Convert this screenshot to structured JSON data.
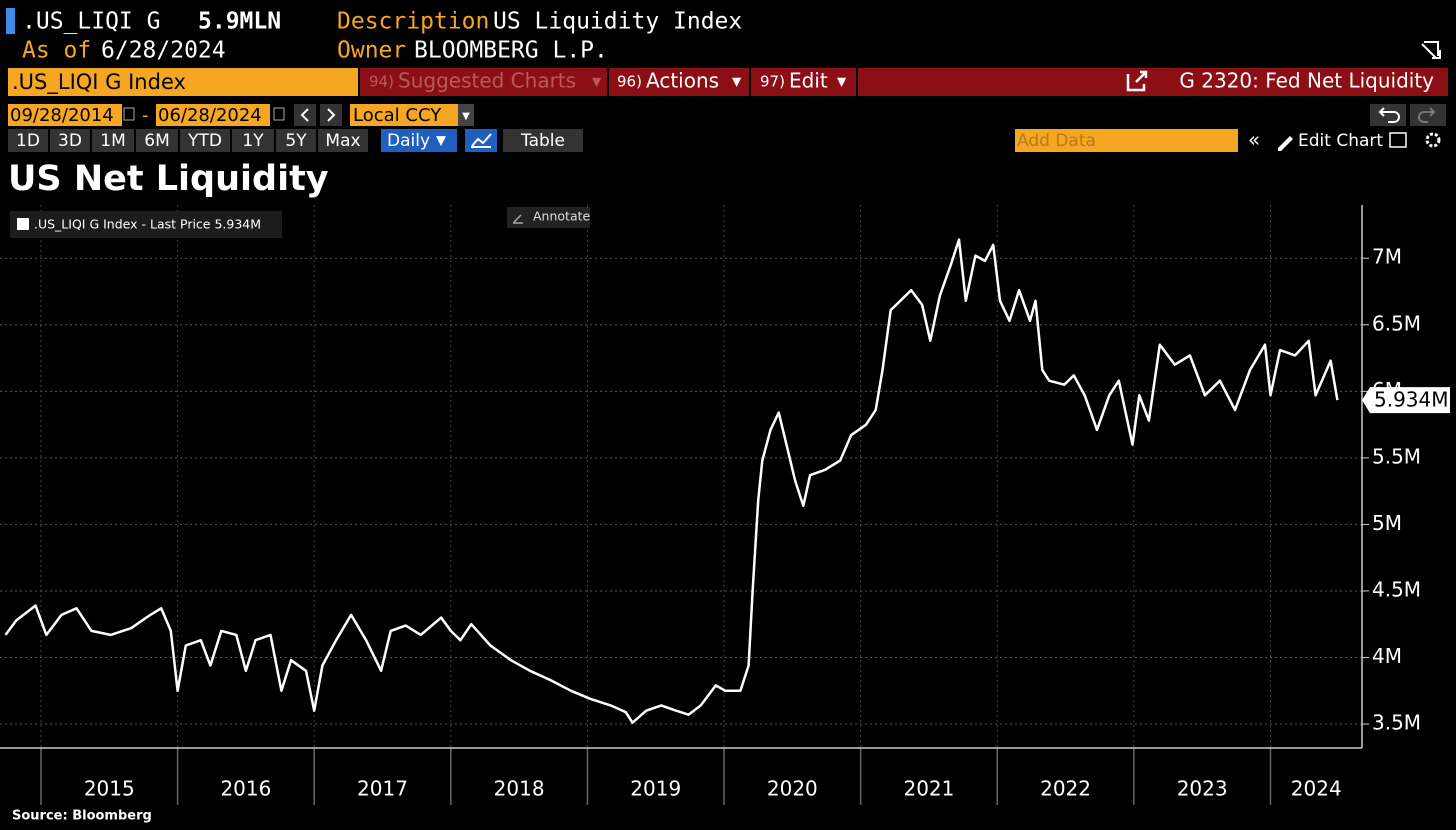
{
  "header": {
    "ticker": ".US_LIQI G",
    "value": "5.9MLN",
    "description_label": "Description",
    "description": "US Liquidity Index",
    "asof_label": "As of",
    "asof": "6/28/2024",
    "owner_label": "Owner",
    "owner": "BLOOMBERG L.P."
  },
  "toolbar": {
    "security": ".US_LIQI G Index",
    "menus": [
      {
        "key": "94)",
        "label": "Suggested Charts"
      },
      {
        "key": "96)",
        "label": "Actions"
      },
      {
        "key": "97)",
        "label": "Edit"
      }
    ],
    "link": "G 2320: Fed Net Liquidity"
  },
  "controls": {
    "start_date": "09/28/2014",
    "separator": "-",
    "end_date": "06/28/2024",
    "currency": "Local CCY",
    "ranges": [
      "1D",
      "3D",
      "1M",
      "6M",
      "YTD",
      "1Y",
      "5Y",
      "Max"
    ],
    "frequency": "Daily",
    "table": "Table",
    "add_data": "Add Data",
    "edit_chart": "Edit Chart"
  },
  "chart_data": {
    "type": "line",
    "title": "US Net Liquidity",
    "annotate": "Annotate",
    "last_label": "5.934M",
    "grid": true,
    "xlim": [
      2014.7,
      2024.67
    ],
    "xticks": [
      2015,
      2016,
      2017,
      2018,
      2019,
      2020,
      2021,
      2022,
      2023,
      2024
    ],
    "ylim": [
      3.32,
      7.4
    ],
    "yticks": [
      {
        "value": 3.5,
        "label": "3.5M"
      },
      {
        "value": 4,
        "label": "4M"
      },
      {
        "value": 4.5,
        "label": "4.5M"
      },
      {
        "value": 5,
        "label": "5M"
      },
      {
        "value": 5.5,
        "label": "5.5M"
      },
      {
        "value": 6,
        "label": "6M"
      },
      {
        "value": 6.5,
        "label": "6.5M"
      },
      {
        "value": 7,
        "label": "7M"
      }
    ],
    "x": [
      2014.74,
      2014.82,
      2014.96,
      2015.04,
      2015.15,
      2015.26,
      2015.37,
      2015.51,
      2015.66,
      2015.8,
      2015.88,
      2015.95,
      2016.0,
      2016.06,
      2016.17,
      2016.24,
      2016.32,
      2016.43,
      2016.5,
      2016.57,
      2016.68,
      2016.76,
      2016.83,
      2016.94,
      2017.0,
      2017.06,
      2017.16,
      2017.27,
      2017.38,
      2017.49,
      2017.56,
      2017.67,
      2017.78,
      2017.93,
      2018.0,
      2018.07,
      2018.15,
      2018.29,
      2018.44,
      2018.58,
      2018.73,
      2018.88,
      2019.02,
      2019.17,
      2019.28,
      2019.33,
      2019.43,
      2019.54,
      2019.65,
      2019.74,
      2019.83,
      2019.94,
      2020.01,
      2020.12,
      2020.18,
      2020.21,
      2020.25,
      2020.28,
      2020.34,
      2020.4,
      2020.45,
      2020.52,
      2020.58,
      2020.63,
      2020.74,
      2020.85,
      2020.93,
      2021.04,
      2021.11,
      2021.16,
      2021.22,
      2021.29,
      2021.37,
      2021.45,
      2021.51,
      2021.58,
      2021.66,
      2021.72,
      2021.77,
      2021.84,
      2021.91,
      2021.97,
      2022.02,
      2022.09,
      2022.16,
      2022.24,
      2022.28,
      2022.33,
      2022.38,
      2022.49,
      2022.56,
      2022.64,
      2022.73,
      2022.82,
      2022.89,
      2022.99,
      2023.04,
      2023.11,
      2023.19,
      2023.3,
      2023.41,
      2023.52,
      2023.63,
      2023.74,
      2023.85,
      2023.96,
      2024.0,
      2024.07,
      2024.18,
      2024.28,
      2024.33,
      2024.44,
      2024.49
    ],
    "series": [
      {
        "name": ".US_LIQI G Index - Last Price 5.934M",
        "color": "#ffffff",
        "values": [
          4.17,
          4.28,
          4.39,
          4.17,
          4.32,
          4.37,
          4.2,
          4.17,
          4.22,
          4.32,
          4.37,
          4.2,
          3.75,
          4.09,
          4.13,
          3.94,
          4.2,
          4.17,
          3.9,
          4.13,
          4.17,
          3.75,
          3.98,
          3.9,
          3.6,
          3.94,
          4.13,
          4.32,
          4.13,
          3.9,
          4.2,
          4.24,
          4.17,
          4.3,
          4.2,
          4.13,
          4.25,
          4.09,
          3.98,
          3.9,
          3.83,
          3.75,
          3.69,
          3.64,
          3.59,
          3.51,
          3.6,
          3.64,
          3.6,
          3.57,
          3.64,
          3.79,
          3.75,
          3.75,
          3.94,
          4.51,
          5.18,
          5.48,
          5.71,
          5.84,
          5.63,
          5.33,
          5.14,
          5.37,
          5.41,
          5.48,
          5.67,
          5.75,
          5.86,
          6.16,
          6.61,
          6.68,
          6.76,
          6.65,
          6.38,
          6.72,
          6.95,
          7.14,
          6.68,
          7.02,
          6.98,
          7.1,
          6.68,
          6.53,
          6.76,
          6.53,
          6.68,
          6.16,
          6.08,
          6.05,
          6.12,
          5.97,
          5.71,
          5.97,
          6.08,
          5.6,
          5.97,
          5.78,
          6.35,
          6.2,
          6.27,
          5.97,
          6.08,
          5.86,
          6.16,
          6.35,
          5.97,
          6.31,
          6.27,
          6.38,
          5.97,
          6.23,
          5.934
        ]
      }
    ]
  },
  "source": "Source: Bloomberg"
}
